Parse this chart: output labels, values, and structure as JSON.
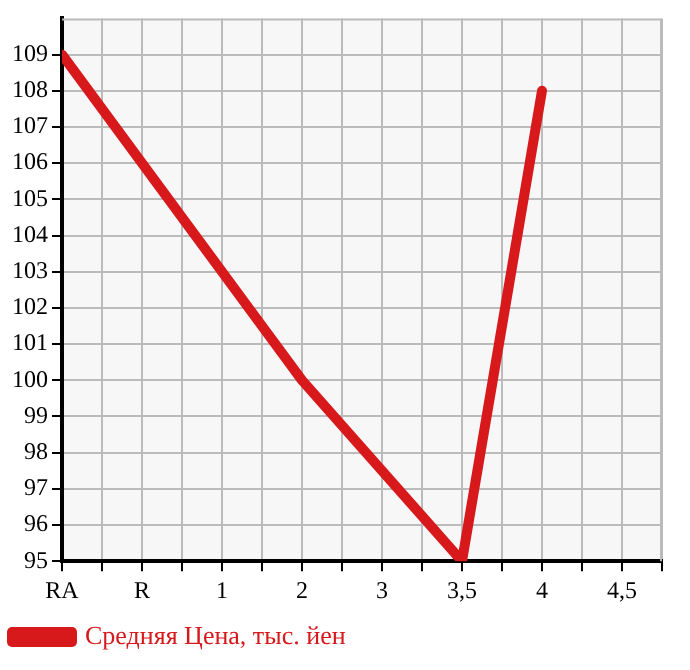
{
  "chart_data": {
    "type": "line",
    "categories": [
      "RA",
      "R",
      "1",
      "2",
      "3",
      "3,5",
      "4",
      "4,5"
    ],
    "series": [
      {
        "name": "Средняя Цена, тыс. йен",
        "color": "#d7191c",
        "values": [
          109,
          null,
          null,
          100,
          null,
          95,
          108,
          null
        ]
      }
    ],
    "ylim": [
      95,
      110
    ],
    "yticks": [
      95,
      96,
      97,
      98,
      99,
      100,
      101,
      102,
      103,
      104,
      105,
      106,
      107,
      108,
      109
    ],
    "grid": true,
    "legend": "bottom left",
    "marker": "none",
    "line_style": "solid"
  }
}
